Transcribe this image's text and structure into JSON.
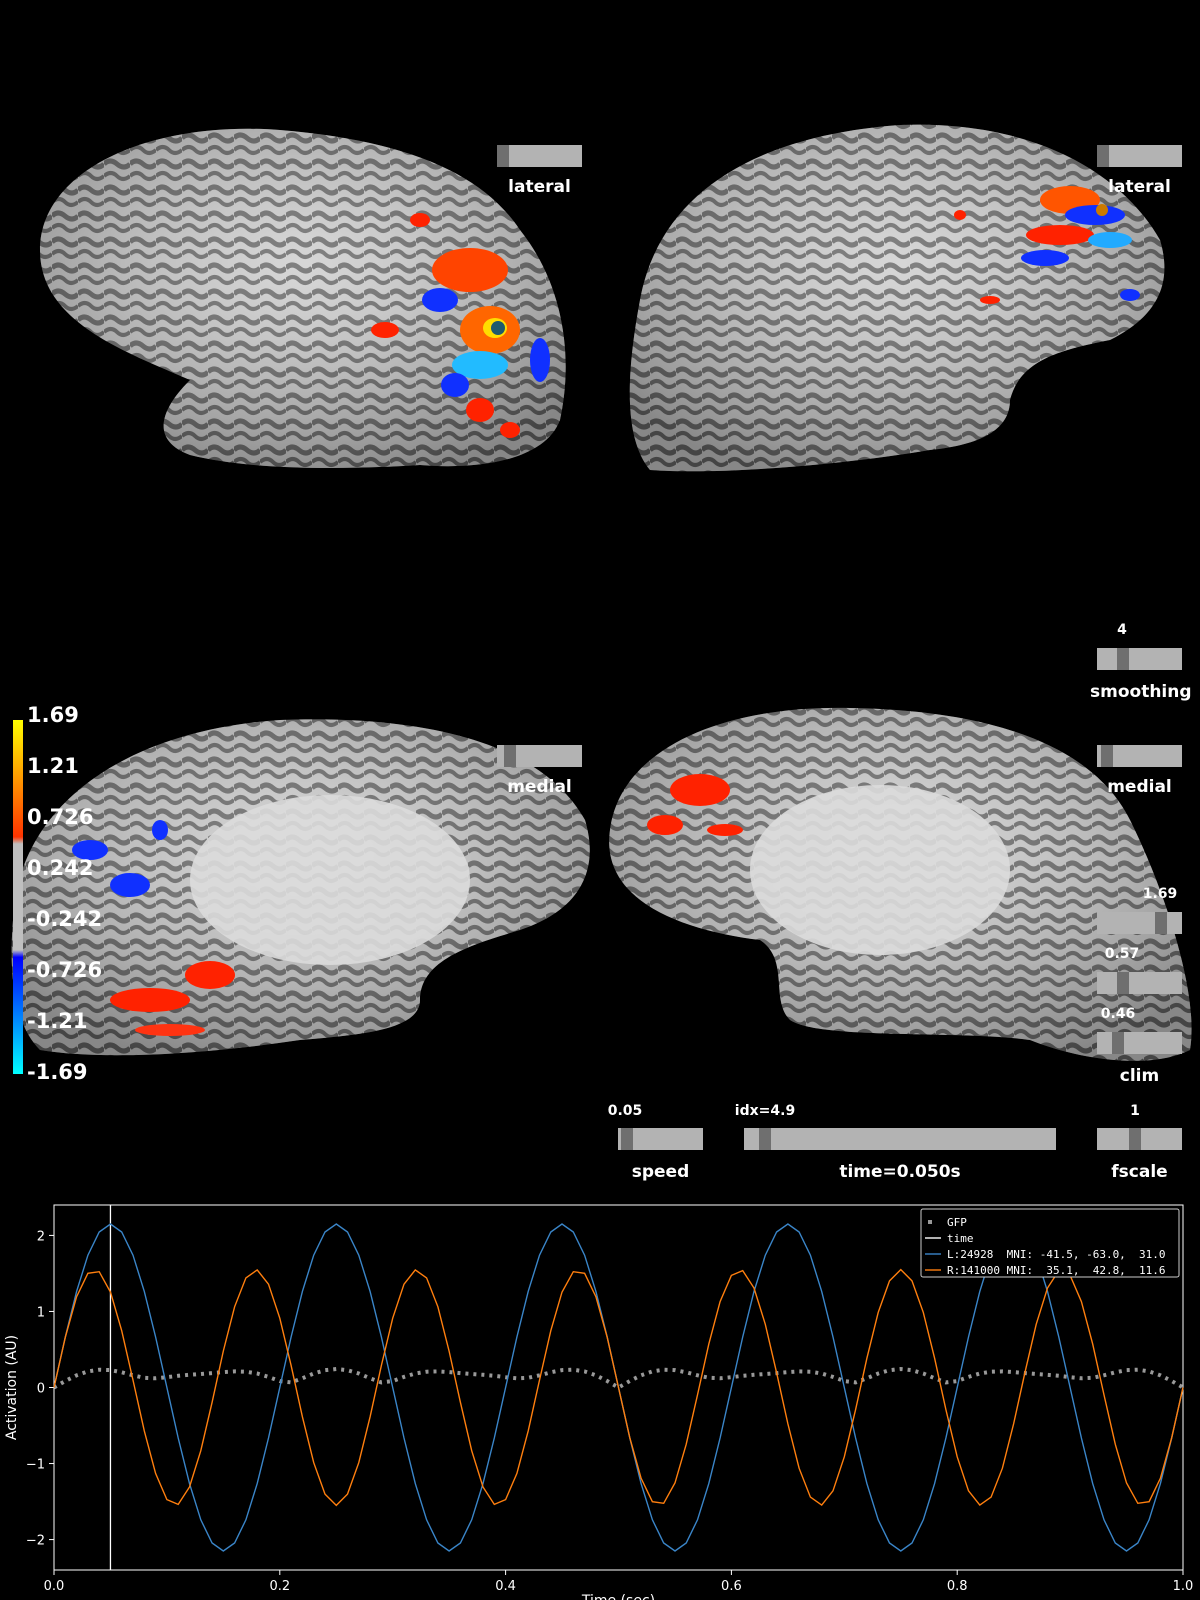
{
  "views": {
    "top_left": {
      "label": "lateral",
      "handle_frac": 0.05
    },
    "top_right": {
      "label": "lateral",
      "handle_frac": 0.05
    },
    "bottom_left": {
      "label": "medial",
      "handle_frac": 0.15
    },
    "bottom_right": {
      "label": "medial",
      "handle_frac": 0.1
    }
  },
  "controls": {
    "smoothing": {
      "label": "smoothing",
      "value": "4",
      "frac": 0.25
    },
    "clim_max": {
      "value": "1.69",
      "frac": 0.75
    },
    "clim_mid": {
      "value": "0.57",
      "frac": 0.3
    },
    "clim_min": {
      "value": "0.46",
      "frac": 0.25
    },
    "clim_label": "clim",
    "speed": {
      "label": "speed",
      "value": "0.05",
      "frac": 0.05
    },
    "time": {
      "label": "time=0.050s",
      "value": "idx=4.9",
      "frac": 0.05
    },
    "fscale": {
      "label": "fscale",
      "value": "1",
      "frac": 0.45
    }
  },
  "colorbar": {
    "ticks": [
      "1.69",
      "1.21",
      "0.726",
      "0.242",
      "-0.242",
      "-0.726",
      "-1.21",
      "-1.69"
    ],
    "colors": {
      "pos_max": "#ffff00",
      "pos_mid": "#ff3300",
      "neutral": "#bfbfbf",
      "neg_mid": "#0000ff",
      "neg_max": "#00ffff"
    }
  },
  "chart_data": {
    "type": "line",
    "xlabel": "Time (sec)",
    "ylabel": "Activation (AU)",
    "xlim": [
      0.0,
      1.0
    ],
    "ylim": [
      -2.4,
      2.4
    ],
    "xticks": [
      "0.0",
      "0.2",
      "0.4",
      "0.6",
      "0.8",
      "1.0"
    ],
    "yticks": [
      "2",
      "1",
      "0",
      "−1",
      "−2"
    ],
    "legend_position": "top-right",
    "time_cursor": 0.05,
    "series": [
      {
        "name": "GFP",
        "style": "dotted",
        "color": "#999999",
        "amplitude": 0.22,
        "frequency": 10,
        "phase": 0,
        "kind": "gfp"
      },
      {
        "name": "time",
        "style": "solid",
        "color": "#ffffff",
        "kind": "vline"
      },
      {
        "name": "L:24928  MNI: -41.5, -63.0,  31.0",
        "style": "solid",
        "color": "#3a85c8",
        "amplitude": 2.15,
        "frequency": 5,
        "phase": 0,
        "kind": "sine"
      },
      {
        "name": "R:141000 MNI:  35.1,  42.8,  11.6",
        "style": "solid",
        "color": "#ff7f0e",
        "amplitude": 1.55,
        "frequency": 7,
        "phase": 0,
        "kind": "sine"
      }
    ]
  }
}
